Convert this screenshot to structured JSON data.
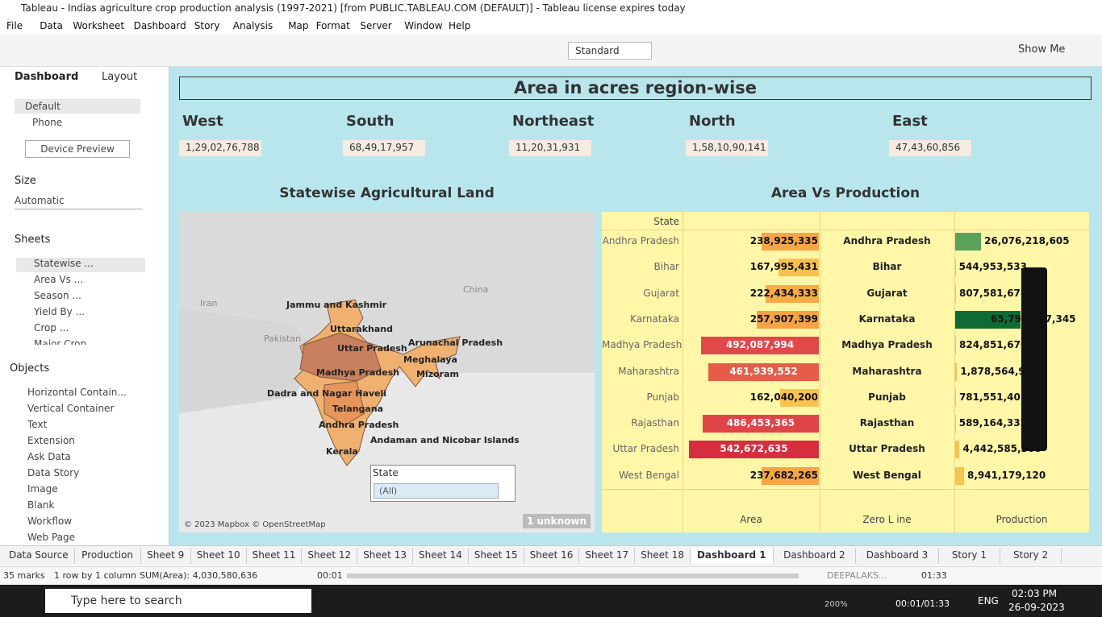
{
  "window": {
    "title": "Tableau - Indias agriculture crop production analysis (1997-2021) [from PUBLIC.TABLEAU.COM (DEFAULT)] - Tableau license expires today"
  },
  "menu": [
    "File",
    "Data",
    "Worksheet",
    "Dashboard",
    "Story",
    "Analysis",
    "Map",
    "Format",
    "Server",
    "Window",
    "Help"
  ],
  "toolbar": {
    "view": "Standard",
    "show_me": "Show Me"
  },
  "side_panel": {
    "tabs": [
      "Dashboard",
      "Layout"
    ],
    "devices": [
      "Default",
      "Phone"
    ],
    "device_preview": "Device Preview",
    "size_heading": "Size",
    "size": "Automatic",
    "sheets_heading": "Sheets",
    "sheets": [
      "Statewise ...",
      "Area Vs ...",
      "Season ...",
      "Yield By ...",
      "Crop ...",
      "Major Crop..."
    ],
    "objects_heading": "Objects",
    "objects": [
      "Horizontal Contain...",
      "Vertical Container",
      "Text",
      "Extension",
      "Ask Data",
      "Data Story",
      "Image",
      "Blank",
      "Workflow",
      "Web Page"
    ]
  },
  "dashboard": {
    "title": "Area in acres region-wise",
    "regions": [
      {
        "name": "West",
        "value": "1,29,02,76,788"
      },
      {
        "name": "South",
        "value": "68,49,17,957"
      },
      {
        "name": "Northeast",
        "value": "11,20,31,931"
      },
      {
        "name": "North",
        "value": "1,58,10,90,141"
      },
      {
        "name": "East",
        "value": "47,43,60,856"
      }
    ]
  },
  "map": {
    "title": "Statewise Agricultural Land",
    "countries": [
      "Iran",
      "Pakistan",
      "China"
    ],
    "states": [
      "Jammu and Kashmir",
      "Uttarakhand",
      "Uttar Pradesh",
      "Arunachal Pradesh",
      "Meghalaya",
      "Mizoram",
      "Madhya Pradesh",
      "Dadra and Nagar Haveli",
      "Telangana",
      "Andhra Pradesh",
      "Kerala",
      "Andaman and Nicobar Islands"
    ],
    "credit": "© 2023 Mapbox © OpenStreetMap",
    "unknown": "1 unknown",
    "filter": {
      "label": "State",
      "value": "(All)"
    }
  },
  "table": {
    "title": "Area Vs Production",
    "state_header": "State",
    "columns": [
      "Area",
      "Zero L ine",
      "Production"
    ],
    "rows": [
      {
        "state": "Andhra Pradesh",
        "area": 238925335,
        "area_label": "238,925,335",
        "area_color": "#f7a546",
        "production": 26076218605,
        "production_label": "26,076,218,605",
        "production_color": "#5aa25a"
      },
      {
        "state": "Bihar",
        "area": 167995431,
        "area_label": "167,995,431",
        "area_color": "#f8c050",
        "production": 544953533,
        "production_label": "544,953,533",
        "production_color": "#f6c451"
      },
      {
        "state": "Gujarat",
        "area": 222434333,
        "area_label": "222,434,333",
        "area_color": "#f7ab48",
        "production": 807581678,
        "production_label": "807,581,678",
        "production_color": "#f6c451"
      },
      {
        "state": "Karnataka",
        "area": 257907399,
        "area_label": "257,907,399",
        "area_color": "#f6a245",
        "production": 65797797345,
        "production_label": "65,797,797,345",
        "production_color": "#0f6b35"
      },
      {
        "state": "Madhya Pradesh",
        "area": 492087994,
        "area_label": "492,087,994",
        "area_color": "#e0484a",
        "production": 824851676,
        "production_label": "824,851,676",
        "production_color": "#f6c451"
      },
      {
        "state": "Maharashtra",
        "area": 461939552,
        "area_label": "461,939,552",
        "area_color": "#e65c49",
        "production": 1878564900,
        "production_label": "1,878,564,900",
        "production_color": "#f6c451"
      },
      {
        "state": "Punjab",
        "area": 162040200,
        "area_label": "162,040,200",
        "area_color": "#f9c250",
        "production": 781551405,
        "production_label": "781,551,405",
        "production_color": "#f6c451"
      },
      {
        "state": "Rajasthan",
        "area": 486453365,
        "area_label": "486,453,365",
        "area_color": "#df4449",
        "production": 589164332,
        "production_label": "589,164,332",
        "production_color": "#f6c451"
      },
      {
        "state": "Uttar Pradesh",
        "area": 542672635,
        "area_label": "542,672,635",
        "area_color": "#d42e3f",
        "production": 4442585306,
        "production_label": "4,442,585,306",
        "production_color": "#f6c451"
      },
      {
        "state": "West Bengal",
        "area": 237682265,
        "area_label": "237,682,265",
        "area_color": "#f5a546",
        "production": 8941179120,
        "production_label": "8,941,179,120",
        "production_color": "#f6c451"
      }
    ]
  },
  "tabs": [
    "Data Source",
    "Production",
    "Sheet 9",
    "Sheet 10",
    "Sheet 11",
    "Sheet 12",
    "Sheet 13",
    "Sheet 14",
    "Sheet 15",
    "Sheet 16",
    "Sheet 17",
    "Sheet 18",
    "Dashboard 1",
    "Dashboard 2",
    "Dashboard 3",
    "Story 1",
    "Story 2"
  ],
  "status": {
    "marks": "35 marks",
    "layout": "1 row by 1 column",
    "sum": "SUM(Area): 4,030,580,636"
  },
  "player": {
    "elapsed": "00:01",
    "total": "01:33",
    "user": "DEEPALAKS..."
  },
  "taskbar": {
    "search": "Type here to search",
    "zoom": "200%",
    "timer": "00:01/01:33",
    "lang": "ENG",
    "time": "02:03 PM",
    "date": "26-09-2023"
  }
}
